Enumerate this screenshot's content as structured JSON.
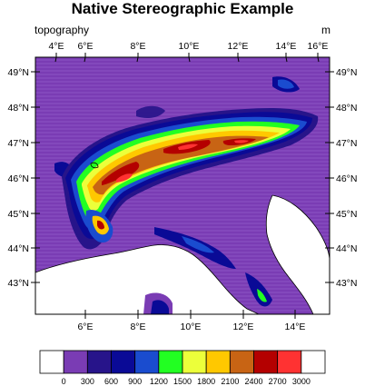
{
  "title": "Native Stereographic Example",
  "left_string": "topography",
  "right_string": "m",
  "colors": {
    "levels": [
      "#ffffff",
      "#7a3cb4",
      "#27148a",
      "#0a0a96",
      "#1a4ccf",
      "#22ff22",
      "#ecff3a",
      "#ffc800",
      "#c86414",
      "#b40000",
      "#ff3232",
      "#ffffff"
    ]
  },
  "map": {
    "lon_range": [
      4.3,
      16.3
    ],
    "lat_range": [
      42.3,
      49.4
    ],
    "top_lon_ticks": [
      "4°E",
      "6°E",
      "8°E",
      "10°E",
      "12°E",
      "14°E",
      "16°E"
    ],
    "bottom_lon_ticks": [
      "6°E",
      "8°E",
      "10°E",
      "12°E",
      "14°E"
    ],
    "lat_ticks": [
      "43°N",
      "44°N",
      "45°N",
      "46°N",
      "47°N",
      "48°N",
      "49°N"
    ]
  },
  "colorbar": {
    "labels": [
      "0",
      "300",
      "600",
      "900",
      "1200",
      "1500",
      "1800",
      "2100",
      "2400",
      "2700",
      "3000"
    ]
  }
}
